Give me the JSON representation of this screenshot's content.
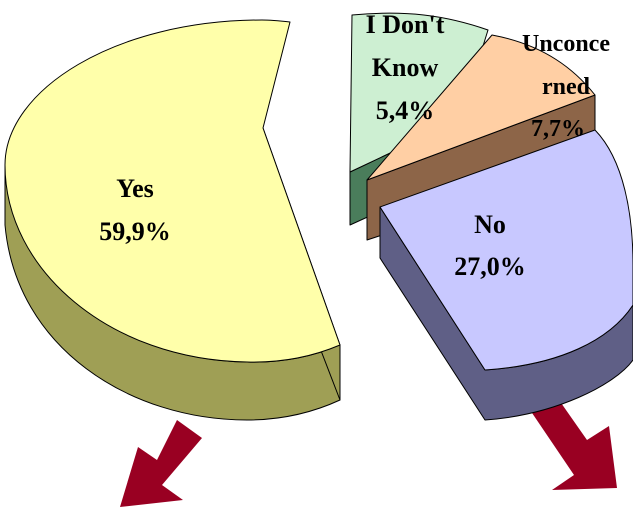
{
  "chart_data": {
    "type": "pie",
    "title": "",
    "slices": [
      {
        "label": "Yes",
        "value": 59.9,
        "value_text": "59,9%",
        "color": "#FFFFAA",
        "side_color": "#9F9F55"
      },
      {
        "label": "I Don't Know",
        "value": 5.4,
        "value_text": "5,4%",
        "color": "#CDEFD2",
        "side_color": "#4A7D5B"
      },
      {
        "label": "Unconcerned",
        "value": 7.7,
        "value_text": "7,7%",
        "color": "#FFCFA4",
        "side_color": "#8D6548"
      },
      {
        "label": "No",
        "value": 27.0,
        "value_text": "27,0%",
        "color": "#C8C8FF",
        "side_color": "#5F5F86"
      }
    ],
    "label_lines": {
      "yes": [
        "Yes"
      ],
      "dont_know": [
        "I Don't",
        "Know"
      ],
      "unconcerned": [
        "Unconce",
        "rned"
      ],
      "no": [
        "No"
      ]
    },
    "arrow_color": "#990022",
    "legend": "none",
    "grid": false
  }
}
